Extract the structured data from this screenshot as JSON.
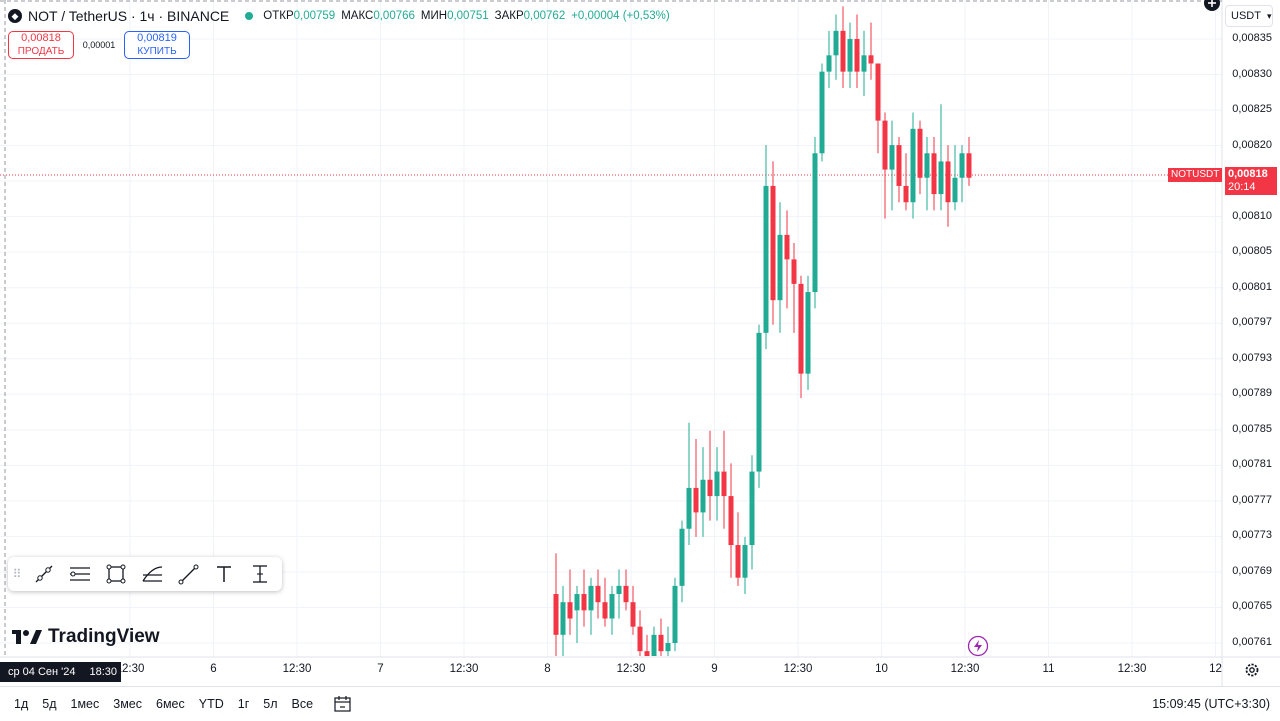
{
  "legend": {
    "title": "NOT / TetherUS · 1ч · BINANCE",
    "open_label": "ОТКР",
    "open_value": "0,00759",
    "high_label": "МАКС",
    "high_value": "0,00766",
    "low_label": "МИН",
    "low_value": "0,00751",
    "close_label": "ЗАКР",
    "close_value": "0,00762",
    "change": "+0,00004 (+0,53%)"
  },
  "trade": {
    "sell_price": "0,00818",
    "sell_label": "ПРОДАТЬ",
    "spread": "0,00001",
    "buy_price": "0,00819",
    "buy_label": "КУПИТЬ"
  },
  "currency": "USDT",
  "price_axis": [
    "0,00835",
    "0,00830",
    "0,00825",
    "0,00820",
    "0,00815",
    "0,00810",
    "0,00805",
    "0,00801",
    "0,00797",
    "0,00793",
    "0,00789",
    "0,00785",
    "0,00781",
    "0,00777",
    "0,00773",
    "0,00769",
    "0,00765",
    "0,00761"
  ],
  "last_price": {
    "symbol": "NOTUSDT",
    "price": "0,00818",
    "countdown": "20:14"
  },
  "time_axis": [
    "12:30",
    "6",
    "12:30",
    "7",
    "12:30",
    "8",
    "12:30",
    "9",
    "12:30",
    "10",
    "12:30",
    "11",
    "12:30",
    "12"
  ],
  "date_badge": {
    "date": "ср 04 Сен '24",
    "time": "18:30"
  },
  "logo": "TradingView",
  "ranges": [
    "1д",
    "5д",
    "1мес",
    "3мес",
    "6мес",
    "YTD",
    "1г",
    "5л",
    "Все"
  ],
  "clock": "15:09:45 (UTC+3:30)",
  "colors": {
    "up": "#22ab94",
    "down": "#f23645",
    "grid": "#f0f3fa",
    "last_line": "#f23645"
  },
  "icons": [
    "trend-line-icon",
    "parallel-lines-icon",
    "rectangle-icon",
    "fib-icon",
    "line-icon",
    "text-icon",
    "measure-icon",
    "settings-icon",
    "calendar-icon",
    "flash-icon",
    "plus-icon"
  ],
  "chart_data": {
    "type": "candlestick",
    "timeframe": "1ч",
    "series": [
      {
        "o": 0.00767,
        "h": 0.00772,
        "l": 0.00759,
        "c": 0.00762
      },
      {
        "o": 0.00762,
        "h": 0.00768,
        "l": 0.00756,
        "c": 0.00766
      },
      {
        "o": 0.00766,
        "h": 0.0077,
        "l": 0.00762,
        "c": 0.00764
      },
      {
        "o": 0.00765,
        "h": 0.00768,
        "l": 0.00761,
        "c": 0.00767
      },
      {
        "o": 0.00767,
        "h": 0.0077,
        "l": 0.00763,
        "c": 0.00765
      },
      {
        "o": 0.00765,
        "h": 0.00769,
        "l": 0.00762,
        "c": 0.00768
      },
      {
        "o": 0.00768,
        "h": 0.0077,
        "l": 0.00764,
        "c": 0.00766
      },
      {
        "o": 0.00766,
        "h": 0.00769,
        "l": 0.00763,
        "c": 0.00764
      },
      {
        "o": 0.00764,
        "h": 0.00768,
        "l": 0.00762,
        "c": 0.00767
      },
      {
        "o": 0.00767,
        "h": 0.0077,
        "l": 0.00764,
        "c": 0.00768
      },
      {
        "o": 0.00768,
        "h": 0.0077,
        "l": 0.00765,
        "c": 0.00766
      },
      {
        "o": 0.00766,
        "h": 0.00768,
        "l": 0.00762,
        "c": 0.00763
      },
      {
        "o": 0.00763,
        "h": 0.00765,
        "l": 0.00759,
        "c": 0.0076
      },
      {
        "o": 0.0076,
        "h": 0.00762,
        "l": 0.00758,
        "c": 0.00758
      },
      {
        "o": 0.00758,
        "h": 0.00763,
        "l": 0.00757,
        "c": 0.00762
      },
      {
        "o": 0.00762,
        "h": 0.00764,
        "l": 0.00759,
        "c": 0.0076
      },
      {
        "o": 0.0076,
        "h": 0.00763,
        "l": 0.00758,
        "c": 0.00761
      },
      {
        "o": 0.00761,
        "h": 0.00769,
        "l": 0.0076,
        "c": 0.00768
      },
      {
        "o": 0.00768,
        "h": 0.00776,
        "l": 0.00766,
        "c": 0.00775
      },
      {
        "o": 0.00775,
        "h": 0.00788,
        "l": 0.00773,
        "c": 0.0078
      },
      {
        "o": 0.0078,
        "h": 0.00786,
        "l": 0.00774,
        "c": 0.00777
      },
      {
        "o": 0.00777,
        "h": 0.00785,
        "l": 0.00774,
        "c": 0.00781
      },
      {
        "o": 0.00781,
        "h": 0.00787,
        "l": 0.00776,
        "c": 0.00779
      },
      {
        "o": 0.00779,
        "h": 0.00785,
        "l": 0.00776,
        "c": 0.00782
      },
      {
        "o": 0.00782,
        "h": 0.00787,
        "l": 0.00775,
        "c": 0.00779
      },
      {
        "o": 0.00779,
        "h": 0.00783,
        "l": 0.00769,
        "c": 0.00773
      },
      {
        "o": 0.00773,
        "h": 0.00777,
        "l": 0.00768,
        "c": 0.00769
      },
      {
        "o": 0.00769,
        "h": 0.00774,
        "l": 0.00767,
        "c": 0.00773
      },
      {
        "o": 0.00773,
        "h": 0.00784,
        "l": 0.0077,
        "c": 0.00782
      },
      {
        "o": 0.00782,
        "h": 0.008,
        "l": 0.0078,
        "c": 0.00799
      },
      {
        "o": 0.00799,
        "h": 0.00822,
        "l": 0.00797,
        "c": 0.00817
      },
      {
        "o": 0.00817,
        "h": 0.0082,
        "l": 0.008,
        "c": 0.00803
      },
      {
        "o": 0.00803,
        "h": 0.00815,
        "l": 0.00799,
        "c": 0.00811
      },
      {
        "o": 0.00811,
        "h": 0.00814,
        "l": 0.00802,
        "c": 0.00808
      },
      {
        "o": 0.00808,
        "h": 0.0081,
        "l": 0.00799,
        "c": 0.00805
      },
      {
        "o": 0.00805,
        "h": 0.00806,
        "l": 0.00791,
        "c": 0.00794
      },
      {
        "o": 0.00794,
        "h": 0.00806,
        "l": 0.00792,
        "c": 0.00804
      },
      {
        "o": 0.00804,
        "h": 0.00823,
        "l": 0.00802,
        "c": 0.00821
      },
      {
        "o": 0.00821,
        "h": 0.00832,
        "l": 0.0082,
        "c": 0.00831
      },
      {
        "o": 0.00831,
        "h": 0.00836,
        "l": 0.00829,
        "c": 0.00833
      },
      {
        "o": 0.00833,
        "h": 0.00838,
        "l": 0.0083,
        "c": 0.00836
      },
      {
        "o": 0.00836,
        "h": 0.00839,
        "l": 0.00829,
        "c": 0.00831
      },
      {
        "o": 0.00831,
        "h": 0.00837,
        "l": 0.00829,
        "c": 0.00835
      },
      {
        "o": 0.00835,
        "h": 0.00838,
        "l": 0.00829,
        "c": 0.00831
      },
      {
        "o": 0.00831,
        "h": 0.00836,
        "l": 0.00828,
        "c": 0.00833
      },
      {
        "o": 0.00833,
        "h": 0.00837,
        "l": 0.0083,
        "c": 0.00832
      },
      {
        "o": 0.00832,
        "h": 0.00832,
        "l": 0.00821,
        "c": 0.00825
      },
      {
        "o": 0.00825,
        "h": 0.00826,
        "l": 0.00813,
        "c": 0.00819
      },
      {
        "o": 0.00819,
        "h": 0.00825,
        "l": 0.00814,
        "c": 0.00822
      },
      {
        "o": 0.00822,
        "h": 0.00823,
        "l": 0.00815,
        "c": 0.00817
      },
      {
        "o": 0.00817,
        "h": 0.00821,
        "l": 0.00814,
        "c": 0.00815
      },
      {
        "o": 0.00815,
        "h": 0.00826,
        "l": 0.00813,
        "c": 0.00824
      },
      {
        "o": 0.00824,
        "h": 0.00825,
        "l": 0.00816,
        "c": 0.00818
      },
      {
        "o": 0.00818,
        "h": 0.00823,
        "l": 0.00814,
        "c": 0.00821
      },
      {
        "o": 0.00821,
        "h": 0.00823,
        "l": 0.00814,
        "c": 0.00816
      },
      {
        "o": 0.00816,
        "h": 0.00827,
        "l": 0.00814,
        "c": 0.0082
      },
      {
        "o": 0.0082,
        "h": 0.00822,
        "l": 0.00812,
        "c": 0.00815
      },
      {
        "o": 0.00815,
        "h": 0.00822,
        "l": 0.00814,
        "c": 0.00818
      },
      {
        "o": 0.00818,
        "h": 0.00822,
        "l": 0.00815,
        "c": 0.00821
      },
      {
        "o": 0.00821,
        "h": 0.00823,
        "l": 0.00817,
        "c": 0.00818
      }
    ]
  }
}
